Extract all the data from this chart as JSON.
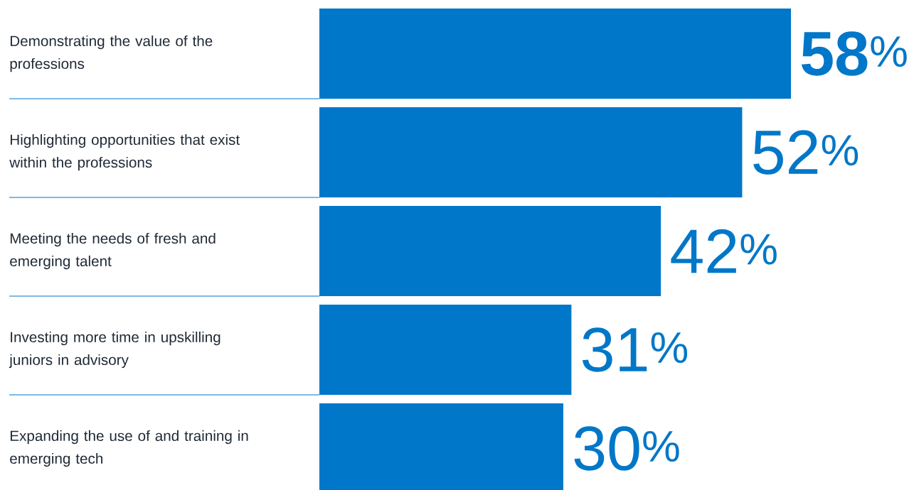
{
  "chart_data": {
    "type": "bar",
    "orientation": "horizontal",
    "categories": [
      "Demonstrating the value of the professions",
      "Highlighting opportunities that exist within the professions",
      "Meeting the needs of fresh and emerging talent",
      "Investing more time in upskilling juniors in advisory",
      "Expanding the use of and training in emerging tech"
    ],
    "values": [
      58,
      52,
      42,
      31,
      30
    ],
    "color": "#0077c8",
    "value_labels": [
      "**58**$^{%}$",
      "52$^{%}$",
      "42$^{%}$",
      "31$^{%}$",
      "30$^{%}$"
    ]
  }
}
